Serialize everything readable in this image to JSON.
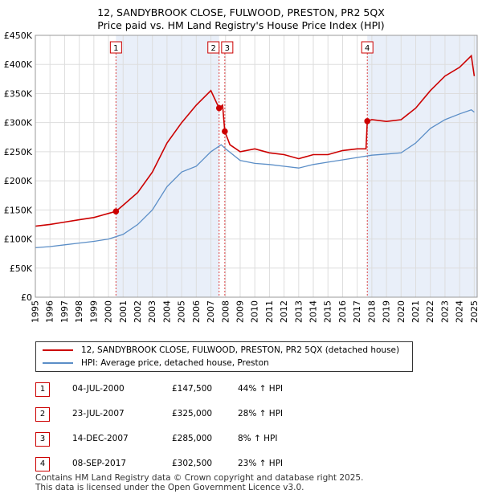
{
  "title_line1": "12, SANDYBROOK CLOSE, FULWOOD, PRESTON, PR2 5QX",
  "title_line2": "Price paid vs. HM Land Registry's House Price Index (HPI)",
  "legend": {
    "property": "12, SANDYBROOK CLOSE, FULWOOD, PRESTON, PR2 5QX (detached house)",
    "hpi": "HPI: Average price, detached house, Preston"
  },
  "colors": {
    "property": "#cc0000",
    "hpi": "#5b8ec7",
    "shade": "#e9eff9",
    "marker": "#cc0000"
  },
  "sales": [
    {
      "num": "1",
      "date": "04-JUL-2000",
      "price": "£147,500",
      "hpi": "44% ↑ HPI"
    },
    {
      "num": "2",
      "date": "23-JUL-2007",
      "price": "£325,000",
      "hpi": "28% ↑ HPI"
    },
    {
      "num": "3",
      "date": "14-DEC-2007",
      "price": "£285,000",
      "hpi": "8% ↑ HPI"
    },
    {
      "num": "4",
      "date": "08-SEP-2017",
      "price": "£302,500",
      "hpi": "23% ↑ HPI"
    }
  ],
  "footer_line1": "Contains HM Land Registry data © Crown copyright and database right 2025.",
  "footer_line2": "This data is licensed under the Open Government Licence v3.0.",
  "chart_data": {
    "type": "line",
    "title": "12, SANDYBROOK CLOSE, FULWOOD, PRESTON, PR2 5QX — Price paid vs. HM Land Registry's House Price Index (HPI)",
    "xlim": [
      1995,
      2025.2
    ],
    "ylim": [
      0,
      450000
    ],
    "x_ticks": [
      1995,
      1996,
      1997,
      1998,
      1999,
      2000,
      2001,
      2002,
      2003,
      2004,
      2005,
      2006,
      2007,
      2008,
      2009,
      2010,
      2011,
      2012,
      2013,
      2014,
      2015,
      2016,
      2017,
      2018,
      2019,
      2020,
      2021,
      2022,
      2023,
      2024,
      2025
    ],
    "y_ticks": [
      0,
      50000,
      100000,
      150000,
      200000,
      250000,
      300000,
      350000,
      400000,
      450000
    ],
    "y_tick_labels": [
      "£0",
      "£50K",
      "£100K",
      "£150K",
      "£200K",
      "£250K",
      "£300K",
      "£350K",
      "£400K",
      "£450K"
    ],
    "sale_markers": [
      {
        "label": "1",
        "x": 2000.51,
        "y": 147500
      },
      {
        "label": "2",
        "x": 2007.56,
        "y": 325000
      },
      {
        "label": "3",
        "x": 2007.95,
        "y": 285000
      },
      {
        "label": "4",
        "x": 2017.69,
        "y": 302500
      }
    ],
    "series": [
      {
        "name": "12, SANDYBROOK CLOSE, FULWOOD, PRESTON, PR2 5QX (detached house)",
        "points": [
          [
            1995,
            122000
          ],
          [
            1996,
            125000
          ],
          [
            1997,
            129000
          ],
          [
            1998,
            133000
          ],
          [
            1999,
            137000
          ],
          [
            2000,
            144000
          ],
          [
            2000.51,
            147500
          ],
          [
            2001,
            158000
          ],
          [
            2002,
            180000
          ],
          [
            2003,
            215000
          ],
          [
            2004,
            265000
          ],
          [
            2005,
            300000
          ],
          [
            2006,
            330000
          ],
          [
            2007,
            355000
          ],
          [
            2007.56,
            325000
          ],
          [
            2007.8,
            330000
          ],
          [
            2007.95,
            285000
          ],
          [
            2008.3,
            262000
          ],
          [
            2009,
            250000
          ],
          [
            2010,
            255000
          ],
          [
            2011,
            248000
          ],
          [
            2012,
            245000
          ],
          [
            2013,
            238000
          ],
          [
            2014,
            245000
          ],
          [
            2015,
            245000
          ],
          [
            2016,
            252000
          ],
          [
            2017,
            255000
          ],
          [
            2017.6,
            255000
          ],
          [
            2017.69,
            302500
          ],
          [
            2018,
            305000
          ],
          [
            2019,
            302000
          ],
          [
            2020,
            305000
          ],
          [
            2021,
            325000
          ],
          [
            2022,
            355000
          ],
          [
            2023,
            380000
          ],
          [
            2024,
            395000
          ],
          [
            2024.8,
            415000
          ],
          [
            2025,
            380000
          ]
        ]
      },
      {
        "name": "HPI: Average price, detached house, Preston",
        "points": [
          [
            1995,
            85000
          ],
          [
            1996,
            87000
          ],
          [
            1997,
            90000
          ],
          [
            1998,
            93000
          ],
          [
            1999,
            96000
          ],
          [
            2000,
            100000
          ],
          [
            2001,
            108000
          ],
          [
            2002,
            125000
          ],
          [
            2003,
            150000
          ],
          [
            2004,
            190000
          ],
          [
            2005,
            215000
          ],
          [
            2006,
            225000
          ],
          [
            2007,
            250000
          ],
          [
            2007.7,
            262000
          ],
          [
            2008,
            255000
          ],
          [
            2009,
            235000
          ],
          [
            2010,
            230000
          ],
          [
            2011,
            228000
          ],
          [
            2012,
            225000
          ],
          [
            2013,
            222000
          ],
          [
            2014,
            228000
          ],
          [
            2015,
            232000
          ],
          [
            2016,
            236000
          ],
          [
            2017,
            240000
          ],
          [
            2018,
            244000
          ],
          [
            2019,
            246000
          ],
          [
            2020,
            248000
          ],
          [
            2021,
            265000
          ],
          [
            2022,
            290000
          ],
          [
            2023,
            305000
          ],
          [
            2024,
            315000
          ],
          [
            2024.8,
            322000
          ],
          [
            2025,
            318000
          ]
        ]
      }
    ]
  }
}
